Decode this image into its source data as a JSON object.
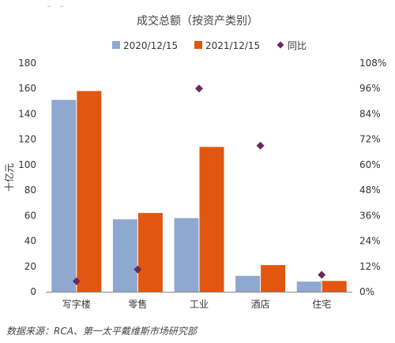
{
  "chart_data": {
    "type": "bar",
    "title": "成交总额（按资产类别）",
    "ylabel": "十亿元",
    "categories": [
      "写字楼",
      "零售",
      "工业",
      "酒店",
      "住宅"
    ],
    "series": [
      {
        "name": "2020/12/15",
        "values": [
          151,
          57,
          58,
          12.5,
          8
        ],
        "color": "#8fa8cf"
      },
      {
        "name": "2021/12/15",
        "values": [
          158,
          62,
          114,
          21,
          8.5
        ],
        "color": "#e2570f"
      }
    ],
    "yoy": {
      "name": "同比",
      "values": [
        5,
        10.5,
        96,
        69,
        8
      ],
      "color": "#6b2a5e"
    },
    "ylim": [
      0,
      180
    ],
    "y_ticks": [
      0,
      20,
      40,
      60,
      80,
      100,
      120,
      140,
      160,
      180
    ],
    "y2lim": [
      0,
      108
    ],
    "y2_ticks": [
      "0%",
      "12%",
      "24%",
      "36%",
      "48%",
      "60%",
      "72%",
      "84%",
      "96%",
      "108%"
    ],
    "legend_position": "top",
    "grid": false
  },
  "source_text": "数据来源：RCA、第一太平戴维斯市场研究部"
}
